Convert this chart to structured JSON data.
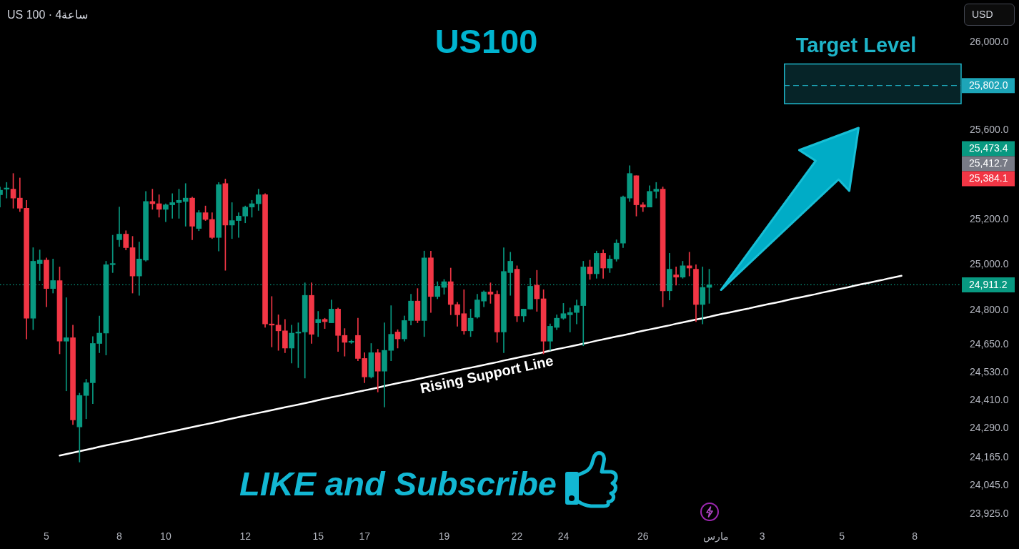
{
  "chart_data": {
    "type": "candlestick",
    "title": "US100",
    "categories": [
      null,
      null,
      null,
      null,
      null,
      null,
      null,
      "5",
      null,
      null,
      null,
      null,
      null,
      null,
      null,
      null,
      null,
      null,
      "8",
      null,
      null,
      null,
      null,
      null,
      null,
      "10",
      null,
      null,
      null,
      null,
      null,
      null,
      null,
      null,
      null,
      null,
      null,
      "12",
      null,
      null,
      null,
      null,
      null,
      null,
      null,
      null,
      null,
      null,
      "15",
      null,
      null,
      null,
      null,
      null,
      null,
      "17",
      null,
      null,
      null,
      null,
      null,
      null,
      null,
      null,
      null,
      null,
      null,
      "19",
      null,
      null,
      null,
      null,
      null,
      null,
      null,
      null,
      null,
      null,
      "22",
      null,
      null,
      null,
      null,
      null,
      null,
      "24",
      null,
      null,
      null,
      null,
      null,
      null,
      null,
      null,
      null,
      null,
      null,
      "26",
      null,
      null,
      null,
      null,
      null,
      null,
      null,
      null,
      null,
      null,
      "مارس",
      null,
      null,
      null,
      null,
      null,
      null,
      "3",
      null,
      null,
      null,
      null,
      null,
      null,
      null,
      null,
      null,
      null,
      null,
      "5",
      null,
      null,
      null,
      null,
      null,
      null,
      null,
      null,
      null,
      null,
      "8",
      null,
      null,
      null,
      null,
      null,
      null,
      null
    ],
    "ohlc": [
      [
        25310,
        25345,
        25255,
        25330
      ],
      [
        25335,
        25365,
        25295,
        25340
      ],
      [
        25335,
        25405,
        25250,
        25295
      ],
      [
        25295,
        25385,
        25235,
        25250
      ],
      [
        25250,
        25285,
        24675,
        24765
      ],
      [
        24765,
        25075,
        24715,
        25015
      ],
      [
        25005,
        25065,
        24930,
        25020
      ],
      [
        25020,
        25030,
        24815,
        24895
      ],
      [
        24895,
        25025,
        24875,
        24930
      ],
      [
        24930,
        24990,
        24610,
        24665
      ],
      [
        24665,
        24855,
        24450,
        24680
      ],
      [
        24680,
        24735,
        24305,
        24325
      ],
      [
        24295,
        24440,
        24145,
        24430
      ],
      [
        24430,
        24500,
        24330,
        24485
      ],
      [
        24485,
        24685,
        24395,
        24655
      ],
      [
        24655,
        24775,
        24615,
        24700
      ],
      [
        24700,
        25015,
        24605,
        25000
      ],
      [
        25000,
        25130,
        24965,
        25005
      ],
      [
        25110,
        25255,
        25080,
        25135
      ],
      [
        25135,
        25150,
        25065,
        25075
      ],
      [
        25075,
        25125,
        24875,
        24950
      ],
      [
        24950,
        25100,
        24865,
        25025
      ],
      [
        25020,
        25325,
        25015,
        25280
      ],
      [
        25280,
        25335,
        25245,
        25270
      ],
      [
        25270,
        25310,
        25210,
        25245
      ],
      [
        25245,
        25270,
        25190,
        25265
      ],
      [
        25265,
        25315,
        25205,
        25275
      ],
      [
        25275,
        25335,
        25205,
        25285
      ],
      [
        25280,
        25360,
        25170,
        25295
      ],
      [
        25295,
        25300,
        25110,
        25170
      ],
      [
        25160,
        25240,
        25150,
        25230
      ],
      [
        25230,
        25260,
        25195,
        25200
      ],
      [
        25200,
        25230,
        25115,
        25120
      ],
      [
        25120,
        25365,
        25060,
        25355
      ],
      [
        25360,
        25380,
        24975,
        25175
      ],
      [
        25175,
        25275,
        25115,
        25195
      ],
      [
        25195,
        25230,
        25120,
        25215
      ],
      [
        25215,
        25260,
        25185,
        25255
      ],
      [
        25255,
        25285,
        25210,
        25270
      ],
      [
        25270,
        25335,
        25240,
        25310
      ],
      [
        25310,
        25315,
        24725,
        24740
      ],
      [
        24740,
        24860,
        24640,
        24735
      ],
      [
        24735,
        24780,
        24625,
        24710
      ],
      [
        24710,
        24760,
        24615,
        24635
      ],
      [
        24635,
        24735,
        24570,
        24700
      ],
      [
        24700,
        24745,
        24550,
        24705
      ],
      [
        24705,
        24920,
        24505,
        24865
      ],
      [
        24865,
        24920,
        24655,
        24695
      ],
      [
        24745,
        24795,
        24685,
        24760
      ],
      [
        24760,
        24765,
        24720,
        24750
      ],
      [
        24745,
        24845,
        24745,
        24805
      ],
      [
        24805,
        24810,
        24620,
        24690
      ],
      [
        24690,
        24720,
        24600,
        24660
      ],
      [
        24660,
        24670,
        24655,
        24665
      ],
      [
        24690,
        24765,
        24580,
        24590
      ],
      [
        24590,
        24615,
        24485,
        24510
      ],
      [
        24510,
        24655,
        24505,
        24615
      ],
      [
        24615,
        24630,
        24445,
        24535
      ],
      [
        24535,
        24745,
        24380,
        24625
      ],
      [
        24625,
        24820,
        24580,
        24695
      ],
      [
        24705,
        24715,
        24635,
        24675
      ],
      [
        24675,
        24775,
        24665,
        24755
      ],
      [
        24755,
        24870,
        24735,
        24840
      ],
      [
        24840,
        24895,
        24745,
        24755
      ],
      [
        24755,
        25060,
        24685,
        25030
      ],
      [
        25030,
        25060,
        24790,
        24860
      ],
      [
        24860,
        24925,
        24850,
        24905
      ],
      [
        24900,
        24935,
        24870,
        24925
      ],
      [
        24925,
        24985,
        24780,
        24825
      ],
      [
        24825,
        24835,
        24730,
        24780
      ],
      [
        24785,
        24890,
        24695,
        24710
      ],
      [
        24710,
        24805,
        24685,
        24765
      ],
      [
        24770,
        24870,
        24765,
        24845
      ],
      [
        24840,
        24885,
        24815,
        24880
      ],
      [
        24880,
        24920,
        24830,
        24870
      ],
      [
        24870,
        24885,
        24660,
        24705
      ],
      [
        24705,
        25075,
        24615,
        24970
      ],
      [
        24965,
        25055,
        24865,
        25015
      ],
      [
        24980,
        24995,
        24750,
        24775
      ],
      [
        24775,
        24805,
        24750,
        24805
      ],
      [
        24805,
        24940,
        24805,
        24905
      ],
      [
        24910,
        24975,
        24795,
        24850
      ],
      [
        24850,
        24890,
        24610,
        24665
      ],
      [
        24665,
        24740,
        24625,
        24730
      ],
      [
        24725,
        24780,
        24715,
        24765
      ],
      [
        24765,
        24830,
        24760,
        24785
      ],
      [
        24780,
        24810,
        24705,
        24790
      ],
      [
        24790,
        24845,
        24740,
        24820
      ],
      [
        24820,
        25015,
        24645,
        24990
      ],
      [
        24990,
        25020,
        24935,
        24960
      ],
      [
        24960,
        25060,
        24940,
        25050
      ],
      [
        25050,
        25065,
        24940,
        24985
      ],
      [
        24985,
        25040,
        24965,
        25025
      ],
      [
        25025,
        25110,
        25015,
        25095
      ],
      [
        25095,
        25305,
        25075,
        25300
      ],
      [
        25295,
        25440,
        25280,
        25405
      ],
      [
        25395,
        25395,
        25215,
        25265
      ],
      [
        25265,
        25275,
        25235,
        25255
      ],
      [
        25255,
        25350,
        25255,
        25325
      ],
      [
        25325,
        25365,
        25295,
        25335
      ],
      [
        25335,
        25345,
        24815,
        24885
      ],
      [
        24885,
        25050,
        24845,
        24980
      ],
      [
        24955,
        24990,
        24910,
        24945
      ],
      [
        24945,
        25015,
        24940,
        24995
      ],
      [
        24995,
        25055,
        24950,
        24985
      ],
      [
        24980,
        25000,
        24750,
        24825
      ],
      [
        24825,
        24990,
        24740,
        24900
      ],
      [
        24900,
        24980,
        24830,
        24911.2
      ],
      null,
      null,
      null,
      null,
      null,
      null,
      null,
      null,
      null,
      null,
      null,
      null,
      null,
      null,
      null,
      null,
      null,
      null,
      null,
      null,
      null,
      null,
      null,
      null,
      null,
      null,
      null,
      null,
      null,
      null,
      null,
      null,
      null,
      null,
      null,
      null,
      null,
      null
    ],
    "colors": [
      "#089981",
      "#089981",
      "#f23645",
      "#f23645",
      "#f23645",
      "#089981",
      "#089981",
      "#f23645",
      "#089981",
      "#f23645",
      "#089981",
      "#f23645",
      "#089981",
      "#089981",
      "#089981",
      "#089981",
      "#089981",
      "#089981",
      "#089981",
      "#f23645",
      "#f23645",
      "#089981",
      "#089981",
      "#f23645",
      "#f23645",
      "#089981",
      "#089981",
      "#089981",
      "#089981",
      "#f23645",
      "#089981",
      "#f23645",
      "#f23645",
      "#089981",
      "#f23645",
      "#089981",
      "#089981",
      "#089981",
      "#089981",
      "#089981",
      "#f23645",
      "#f23645",
      "#f23645",
      "#f23645",
      "#089981",
      "#089981",
      "#089981",
      "#f23645",
      "#089981",
      "#f23645",
      "#089981",
      "#f23645",
      "#f23645",
      "#089981",
      "#f23645",
      "#f23645",
      "#089981",
      "#f23645",
      "#089981",
      "#089981",
      "#f23645",
      "#089981",
      "#089981",
      "#f23645",
      "#089981",
      "#f23645",
      "#089981",
      "#089981",
      "#f23645",
      "#f23645",
      "#f23645",
      "#089981",
      "#089981",
      "#089981",
      "#f23645",
      "#f23645",
      "#089981",
      "#089981",
      "#f23645",
      "#089981",
      "#089981",
      "#f23645",
      "#f23645",
      "#089981",
      "#089981",
      "#089981",
      "#089981",
      "#089981",
      "#089981",
      "#f23645",
      "#089981",
      "#f23645",
      "#089981",
      "#089981",
      "#089981",
      "#089981",
      "#f23645",
      "#f23645",
      "#089981",
      "#089981",
      "#f23645",
      "#089981",
      "#f23645",
      "#089981",
      "#f23645",
      "#f23645",
      "#089981",
      "#089981",
      null,
      null,
      null,
      null,
      null,
      null,
      null,
      null,
      null,
      null,
      null,
      null,
      null,
      null,
      null,
      null,
      null,
      null,
      null,
      null,
      null,
      null,
      null,
      null,
      null,
      null,
      null,
      null,
      null,
      null,
      null,
      null,
      null,
      null,
      null,
      null,
      null,
      null
    ],
    "series": [
      {
        "type": "line",
        "name": "Rising Support Line",
        "color": "#ffffff",
        "values": [
          null,
          null,
          null,
          null,
          null,
          null,
          null,
          null,
          null,
          24173,
          24179,
          24185,
          24191,
          24197,
          24203,
          24210,
          24216,
          24222,
          24228,
          24234,
          24240,
          24246,
          24252,
          24258,
          24264,
          24270,
          24276,
          24282,
          24288,
          24294,
          24300,
          24306,
          24312,
          24318,
          24325,
          24331,
          24337,
          24343,
          24349,
          24355,
          24361,
          24367,
          24373,
          24379,
          24385,
          24391,
          24397,
          24403,
          24410,
          24416,
          24422,
          24428,
          24434,
          24440,
          24446,
          24452,
          24458,
          24464,
          24471,
          24477,
          24483,
          24489,
          24495,
          24501,
          24507,
          24513,
          24519,
          24526,
          24532,
          24538,
          24544,
          24550,
          24556,
          24562,
          24568,
          24574,
          24581,
          24587,
          24593,
          24599,
          24605,
          24611,
          24617,
          24624,
          24630,
          24636,
          24642,
          24648,
          24654,
          24660,
          24667,
          24673,
          24679,
          24685,
          24691,
          24697,
          24704,
          24710,
          24716,
          24722,
          24728,
          24734,
          24741,
          24747,
          24753,
          24759,
          24765,
          24771,
          24778,
          24784,
          24790,
          24796,
          24802,
          24808,
          24815,
          24821,
          24827,
          24833,
          24839,
          24846,
          24852,
          24858,
          24864,
          24870,
          24877,
          24883,
          24889,
          24895,
          24901,
          24908,
          24914,
          24920,
          24926,
          24932,
          24939,
          24945,
          24951,
          null,
          null,
          null,
          null,
          null,
          null,
          null,
          null,
          null
        ]
      }
    ],
    "ylim": [
      23925,
      26000
    ],
    "yticks": [
      {
        "value": 26000,
        "label": "26,000.0"
      },
      {
        "value": 25600,
        "label": "25,600.0"
      },
      {
        "value": 25200,
        "label": "25,200.0"
      },
      {
        "value": 25000,
        "label": "25,000.0"
      },
      {
        "value": 24800,
        "label": "24,800.0"
      },
      {
        "value": 24650,
        "label": "24,650.0"
      },
      {
        "value": 24530,
        "label": "24,530.0"
      },
      {
        "value": 24410,
        "label": "24,410.0"
      },
      {
        "value": 24290,
        "label": "24,290.0"
      },
      {
        "value": 24165,
        "label": "24,165.0"
      },
      {
        "value": 24045,
        "label": "24,045.0"
      },
      {
        "value": 23925,
        "label": "23,925.0"
      }
    ],
    "log": "y",
    "ref_lines": [
      {
        "axis": "y",
        "value": 24911.2,
        "label": "24,911.2",
        "line_style": "dotted",
        "color": "#089981"
      },
      {
        "axis": "y",
        "value": 25802,
        "label": "25,802.0",
        "line_style": "dashed",
        "color": "#1da5b8"
      }
    ],
    "bands": [
      {
        "axis": "y",
        "from": 25720,
        "to": 25900,
        "label": "Target Level",
        "color": "#1eb4c8"
      }
    ],
    "annotations": [
      "US 100 · 4ساعة",
      "USD",
      "LIKE and Subscribe",
      "25,473.4",
      "25,412.7",
      "25,384.1"
    ]
  }
}
